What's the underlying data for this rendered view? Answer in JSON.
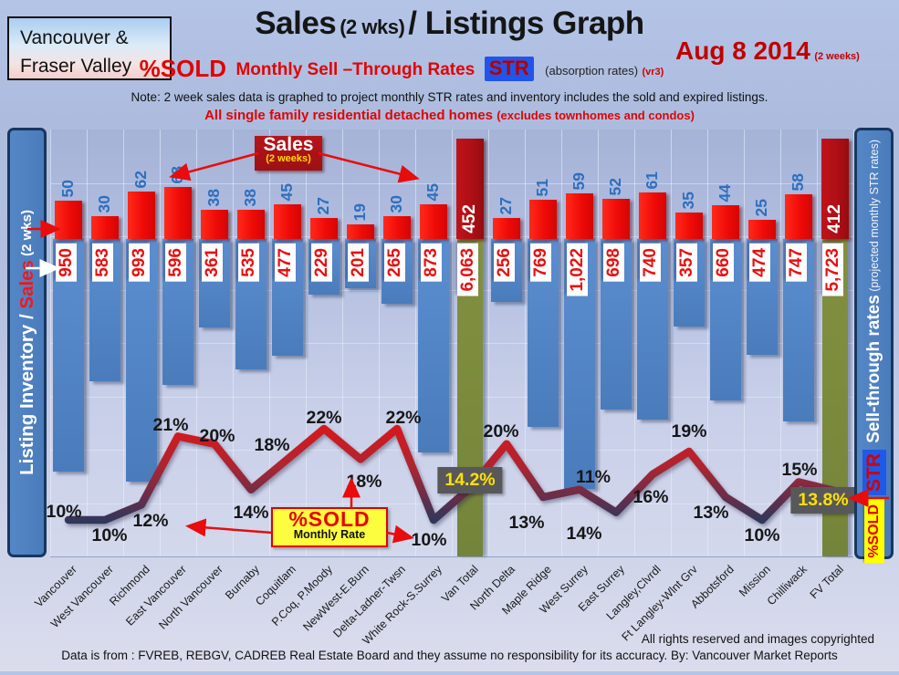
{
  "header": {
    "region_box": {
      "line1": "Vancouver &",
      "line2": "Fraser Valley"
    },
    "title": {
      "part1": "Sales",
      "part2": "(2 wks)",
      "part3": "/ Listings Graph"
    },
    "date": {
      "main": "Aug 8 2014",
      "suffix": "(2 weeks)"
    },
    "subtitle": {
      "pct_sold": "%SOLD",
      "rates_text": "Monthly Sell –Through Rates",
      "str_badge": "STR",
      "absorption": "(absorption rates)",
      "version": "(vr3)"
    },
    "note": "Note: 2 week sales data is graphed to project monthly STR rates and inventory includes the sold and expired listings.",
    "scope_line": {
      "main": "All single family residential detached homes",
      "paren": "(excludes townhomes and condos)"
    }
  },
  "axes": {
    "left_label": {
      "white1": "Listing Inventory / ",
      "red": "Sales",
      "white2": " (2  wks)"
    },
    "right_label": {
      "main": "Sell-through rates",
      "paren": " (projected monthly STR rates)",
      "str_badge": "STR",
      "pct_sold_badge": "%SOLD"
    }
  },
  "annotations": {
    "sales_callout": {
      "title": "Sales",
      "subtitle": "(2 weeks)"
    },
    "pct_callout": {
      "title": "%SOLD",
      "subtitle": "Monthly Rate"
    }
  },
  "footer": {
    "rights": "All rights reserved and  images copyrighted",
    "source": "Data is from : FVREB, REBGV, CADREB Real Estate Board and they assume no responsibility for its accuracy. By: Vancouver Market Reports"
  },
  "chart_data": {
    "type": "combo: bar (sales up / inventory down) + line (%SOLD monthly sell-through rate)",
    "title": "Sales (2 wks)/ Listings Graph — Aug 8 2014",
    "categories": [
      "Vancouver",
      "West Vancouver",
      "Richmond",
      "East Vancouver",
      "North Vancouver",
      "Burnaby",
      "Coquitlam",
      "P.Coq, P.Moody",
      "NewWest-E.Burn",
      "Delta-Ladner-Twsn",
      "White Rock-S.Surrey",
      "Van Total",
      "North Delta",
      "Maple Ridge",
      "West Surrey",
      "East Surrey",
      "Langley,Clvrdl",
      "Ft Langley-Wlnt Grv",
      "Abbotsford",
      "Mission",
      "Chilliwack",
      "FV Total"
    ],
    "series": [
      {
        "name": "Sales (2 weeks)",
        "values": [
          50,
          30,
          62,
          68,
          38,
          38,
          45,
          27,
          19,
          30,
          45,
          452,
          27,
          51,
          59,
          52,
          61,
          35,
          44,
          25,
          58,
          412
        ]
      },
      {
        "name": "Listing Inventory",
        "values": [
          950,
          583,
          993,
          596,
          361,
          535,
          477,
          229,
          201,
          265,
          873,
          6063,
          256,
          769,
          1022,
          698,
          740,
          357,
          660,
          474,
          747,
          5723
        ]
      },
      {
        "name": "%SOLD Monthly Rate (STR)",
        "values": [
          10,
          10,
          12,
          21,
          20,
          14,
          18,
          22,
          18,
          22,
          10,
          14.2,
          20,
          13,
          14,
          11,
          16,
          19,
          13,
          10,
          15,
          13.8
        ]
      }
    ],
    "inventory_label_display": [
      "950",
      "583",
      "993",
      "596",
      "361",
      "535",
      "477",
      "229",
      "201",
      "265",
      "873",
      "6,063",
      "256",
      "769",
      "1,022",
      "698",
      "740",
      "357",
      "660",
      "474",
      "747",
      "5,723"
    ],
    "pct_label_display": [
      "10%",
      "10%",
      "12%",
      "21%",
      "20%",
      "14%",
      "18%",
      "22%",
      "18%",
      "22%",
      "10%",
      "14.2%",
      "20%",
      "13%",
      "14%",
      "11%",
      "16%",
      "19%",
      "13%",
      "10%",
      "15%",
      "13.8%"
    ],
    "totals_indices": [
      11,
      21
    ],
    "colors": {
      "sales_bar": "#ef0b08",
      "totals_sales_bar": "#ac0f15",
      "inventory_bar": "#4f83c3",
      "totals_inventory_bar": "#78873c",
      "line_high": "#f01010",
      "line_low": "#1d3a5f",
      "pct_box_bg": "#58585a",
      "pct_box_text": "#ffe100"
    },
    "layout_hints": {
      "legend": "none",
      "grid": true,
      "pct_label_pos": [
        {
          "dx": -5,
          "y": 408
        },
        {
          "dx": 5,
          "y": 434
        },
        {
          "dx": 10,
          "y": 418
        },
        {
          "dx": -8,
          "y": 313
        },
        {
          "dx": 3,
          "y": 325
        },
        {
          "dx": 0,
          "y": 409
        },
        {
          "dx": -17,
          "y": 335
        },
        {
          "dx": 0,
          "y": 305
        },
        {
          "dx": 4,
          "y": 375
        },
        {
          "dx": 7,
          "y": 305
        },
        {
          "dx": -5,
          "y": 439
        },
        {
          "dx": 0,
          "y": 370
        },
        {
          "dx": -6,
          "y": 320
        },
        {
          "dx": -18,
          "y": 420
        },
        {
          "dx": 5,
          "y": 432
        },
        {
          "dx": -25,
          "y": 370
        },
        {
          "dx": -2,
          "y": 392
        },
        {
          "dx": 0,
          "y": 320
        },
        {
          "dx": -16,
          "y": 409
        },
        {
          "dx": 0,
          "y": 434
        },
        {
          "dx": 1,
          "y": 362
        },
        {
          "dx": -13,
          "y": 392
        }
      ]
    }
  }
}
